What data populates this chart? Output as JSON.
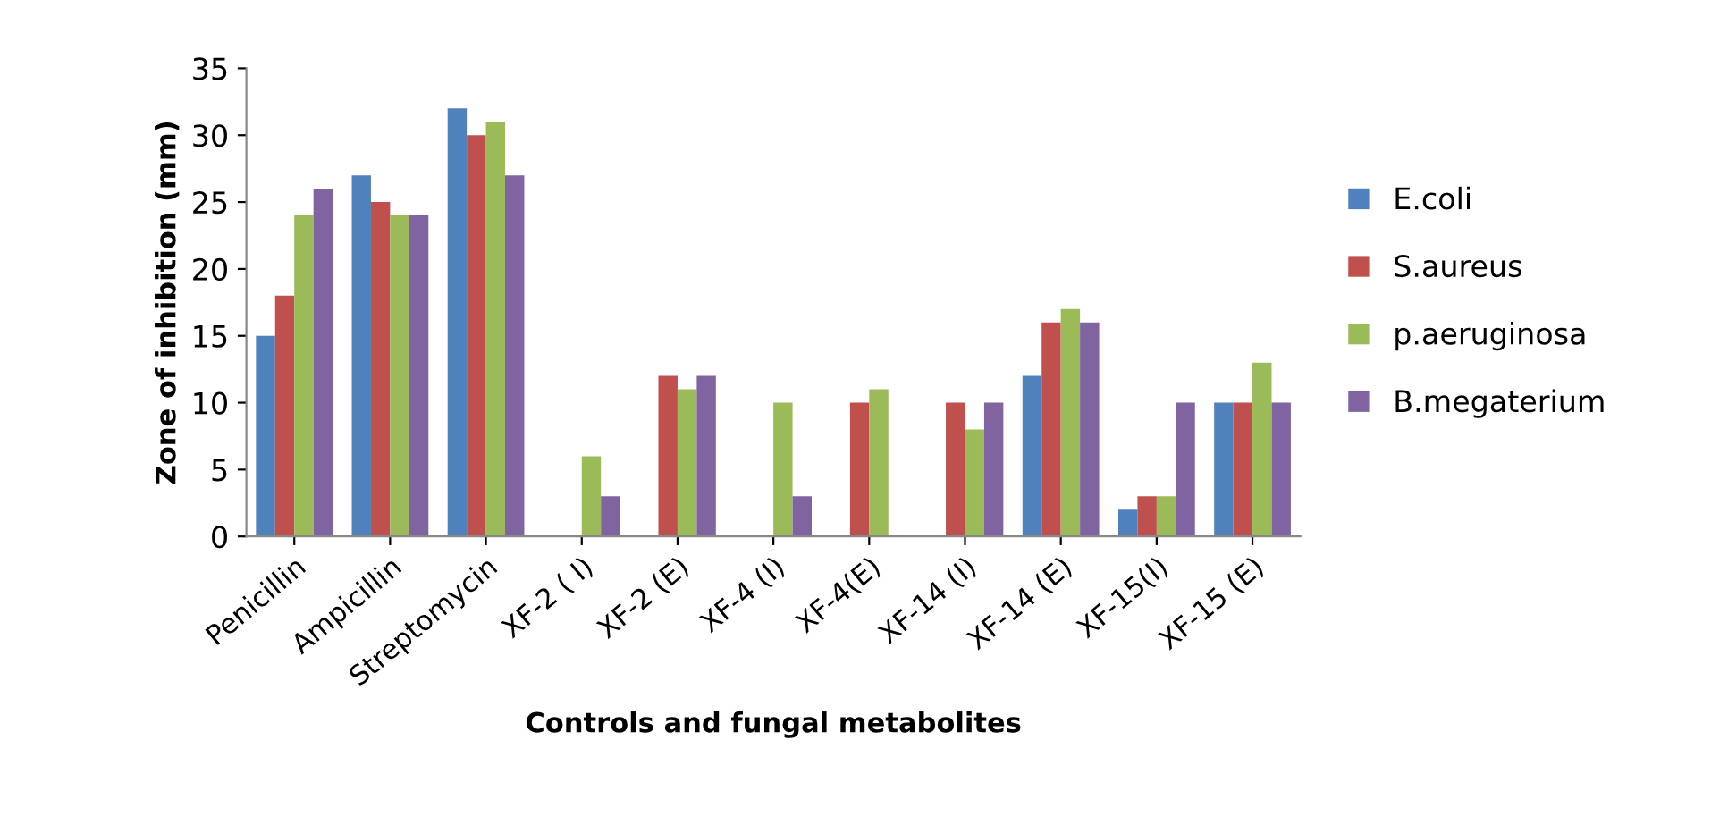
{
  "chart_data": {
    "type": "bar",
    "xlabel": "Controls and fungal metabolites",
    "ylabel": "Zone of inhibition (mm)",
    "categories": [
      "Penicillin",
      "Ampicillin",
      "Streptomycin",
      "XF-2 ( I)",
      "XF-2 (E)",
      "XF-4 (I)",
      "XF-4(E)",
      "XF-14 (I)",
      "XF-14 (E)",
      "XF-15(I)",
      "XF-15 (E)"
    ],
    "series": [
      {
        "name": "E.coli",
        "color": "#4f81bd",
        "values": [
          15,
          27,
          32,
          0,
          0,
          0,
          0,
          0,
          12,
          2,
          10
        ]
      },
      {
        "name": "S.aureus",
        "color": "#c0504d",
        "values": [
          18,
          25,
          30,
          0,
          12,
          0,
          10,
          10,
          16,
          3,
          10
        ]
      },
      {
        "name": "p.aeruginosa",
        "color": "#9bbb59",
        "values": [
          24,
          24,
          31,
          6,
          11,
          10,
          11,
          8,
          17,
          3,
          13
        ]
      },
      {
        "name": "B.megaterium",
        "color": "#8064a2",
        "values": [
          26,
          24,
          27,
          3,
          12,
          3,
          0,
          10,
          16,
          10,
          10
        ]
      }
    ],
    "ylim": [
      0,
      35
    ],
    "yticks": [
      0,
      5,
      10,
      15,
      20,
      25,
      30,
      35
    ],
    "grid": false,
    "legend": "right"
  }
}
